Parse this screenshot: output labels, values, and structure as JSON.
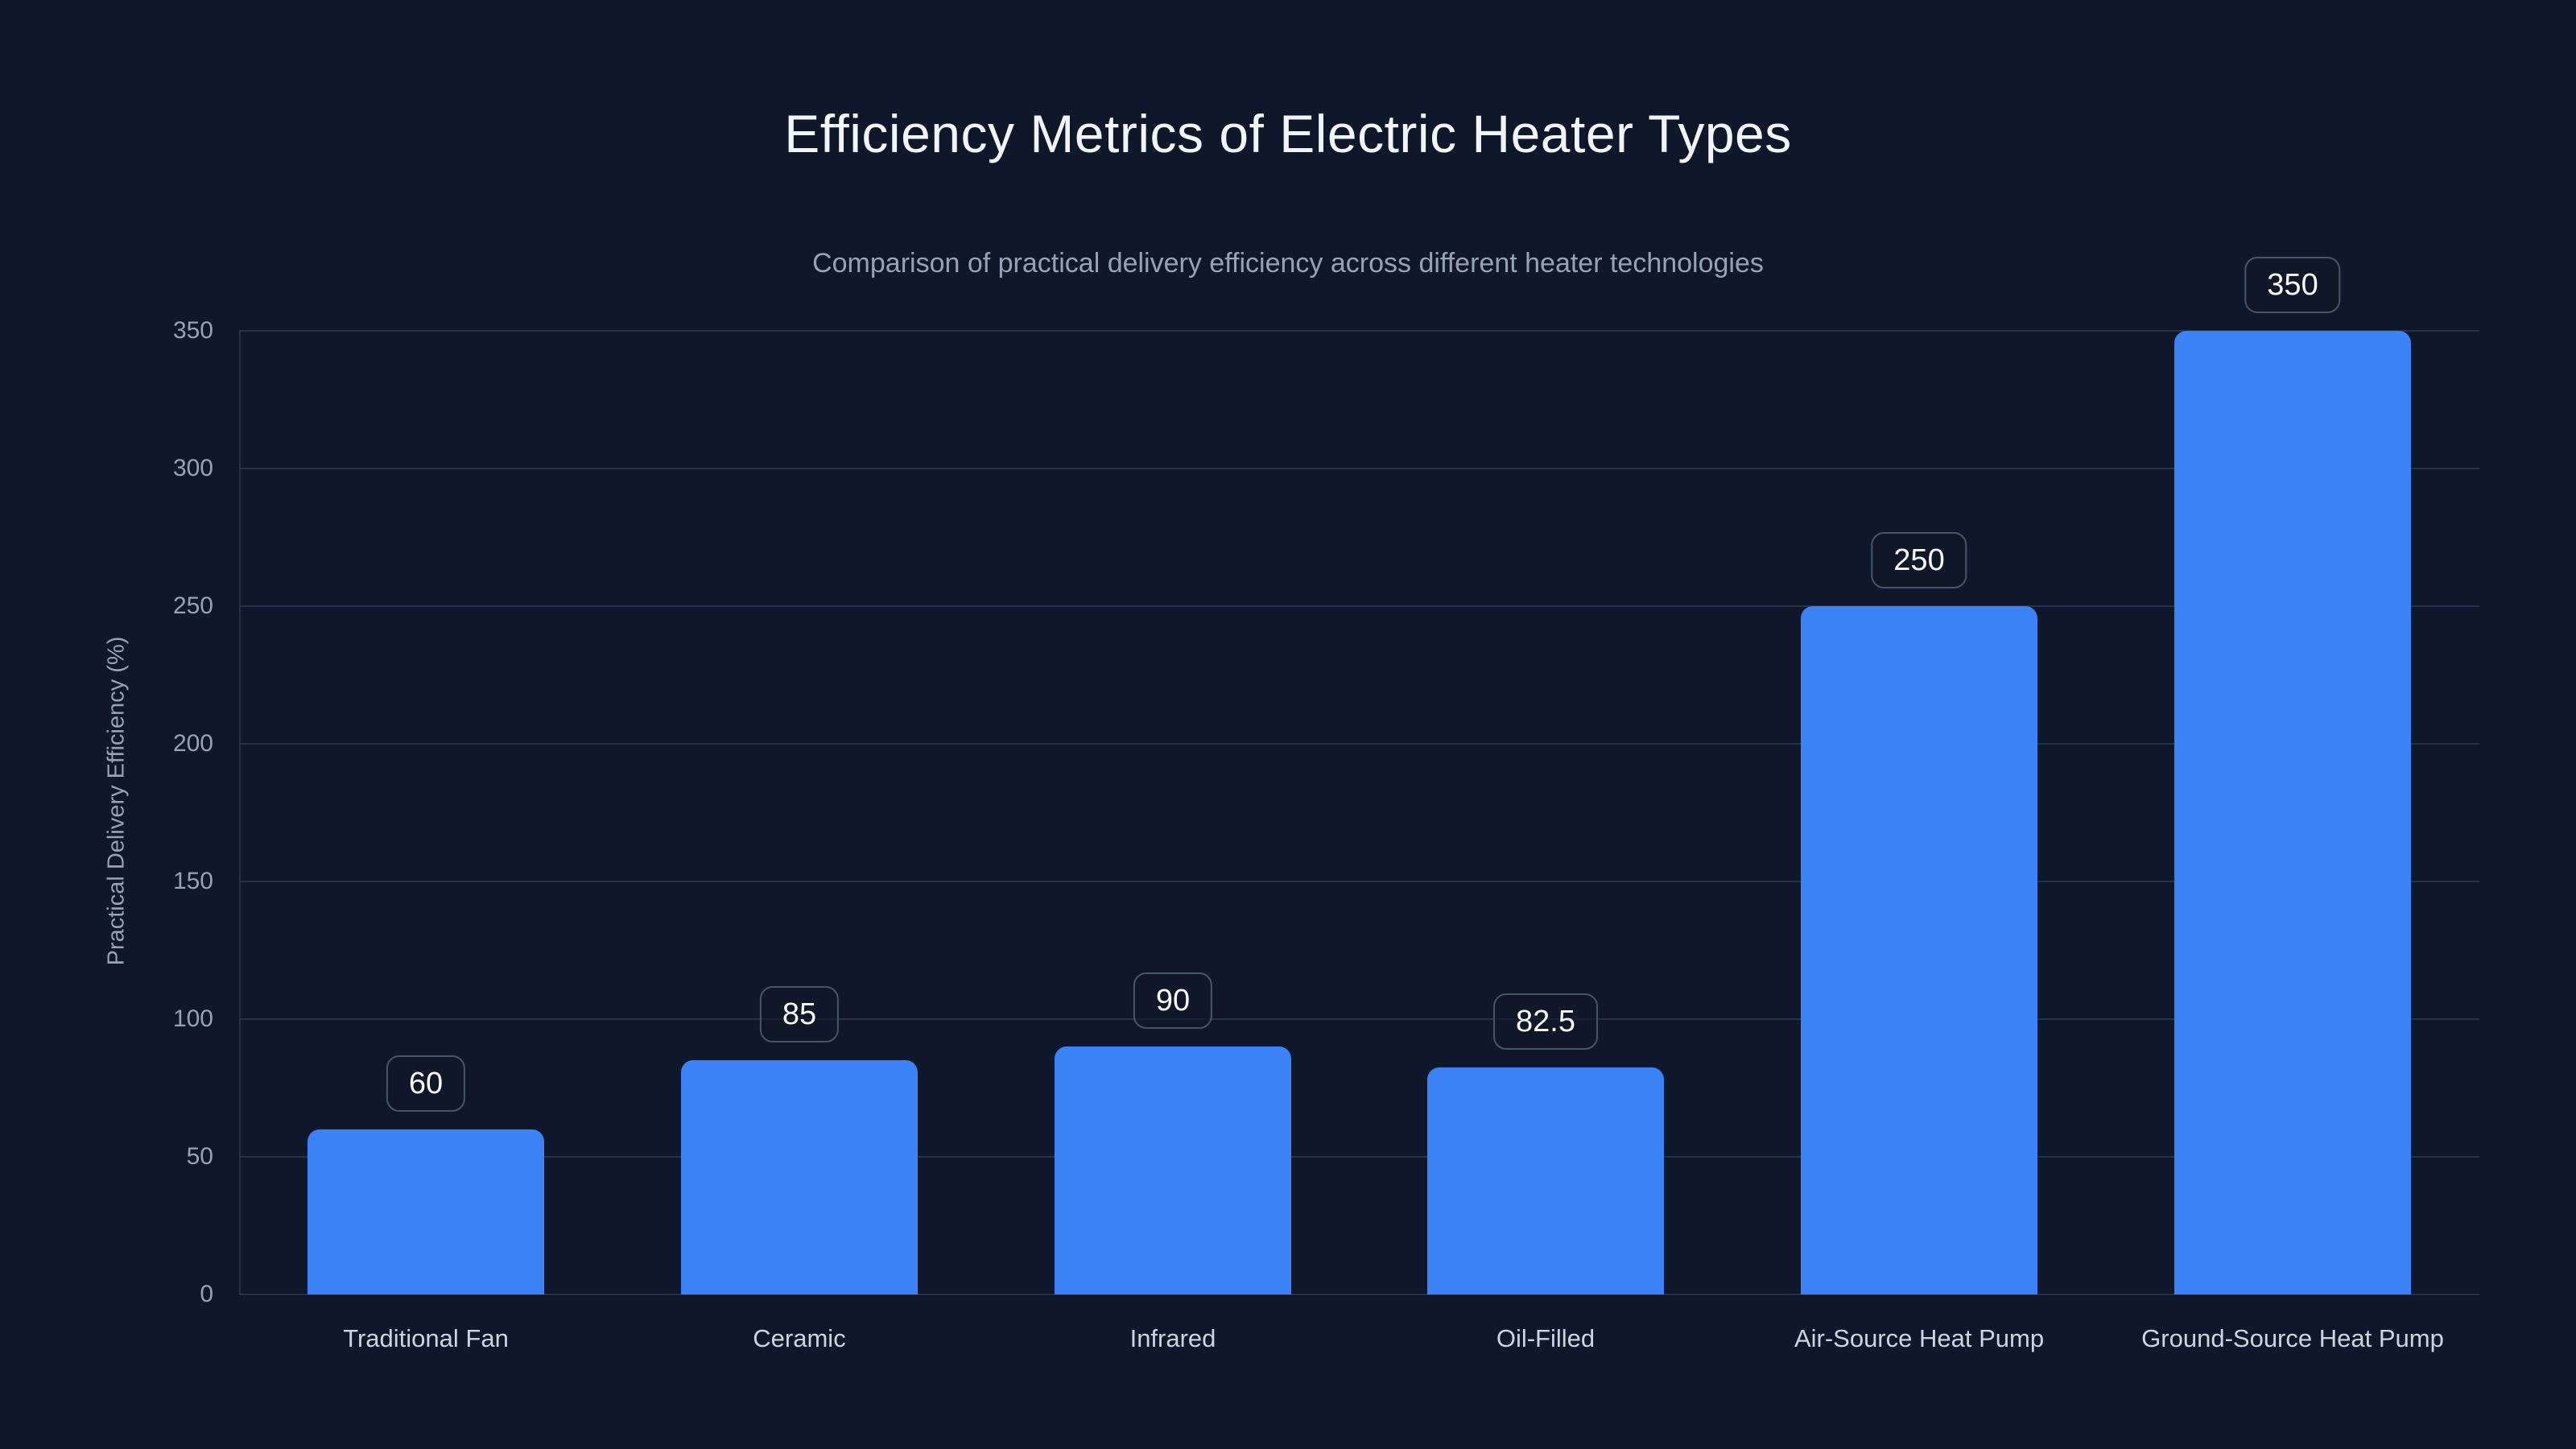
{
  "chart": {
    "title": "Efficiency Metrics of Electric Heater Types",
    "subtitle": "Comparison of practical delivery efficiency across different heater technologies",
    "ylabel": "Practical Delivery Efficiency (%)"
  },
  "chart_data": {
    "type": "bar",
    "title": "Efficiency Metrics of Electric Heater Types",
    "subtitle": "Comparison of practical delivery efficiency across different heater technologies",
    "categories": [
      "Traditional Fan",
      "Ceramic",
      "Infrared",
      "Oil-Filled",
      "Air-Source Heat Pump",
      "Ground-Source Heat Pump"
    ],
    "values": [
      60,
      85,
      90,
      82.5,
      250,
      350
    ],
    "value_labels": [
      "60",
      "85",
      "90",
      "82.5",
      "250",
      "350"
    ],
    "xlabel": "",
    "ylabel": "Practical Delivery Efficiency (%)",
    "ylim": [
      0,
      350
    ],
    "yticks": [
      0,
      50,
      100,
      150,
      200,
      250,
      300,
      350
    ],
    "grid": "horizontal",
    "legend": "none",
    "colors": {
      "background": "#0f172a",
      "bar": "#3b82f6",
      "gridline": "#27324a",
      "title_text": "#f1f5f9",
      "subtitle_text": "#94a3b8",
      "tick_text": "#94a3b8",
      "category_text": "#cbd5e1",
      "badge_border": "#475569",
      "badge_text": "#f8fafc"
    }
  }
}
